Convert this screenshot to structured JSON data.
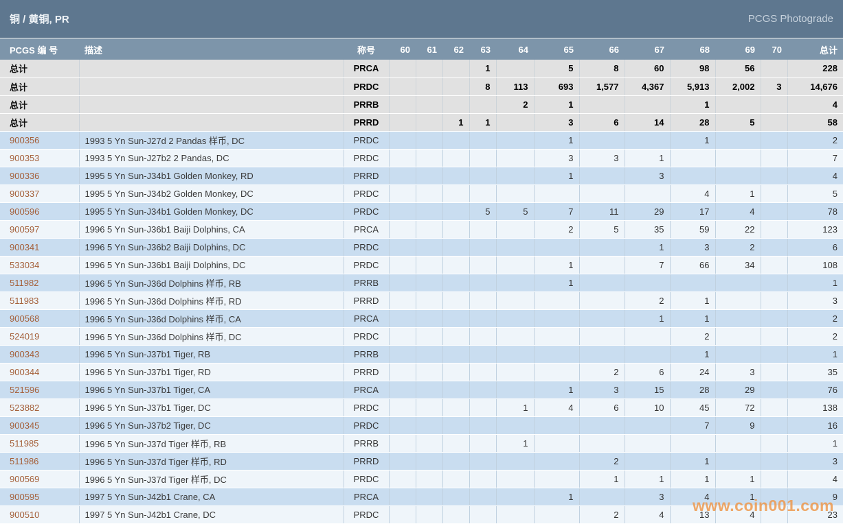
{
  "title_bar": {
    "title": "铜 / 黄铜, PR",
    "right_text": "PCGS Photograde"
  },
  "colors": {
    "titlebar_bg": "#5e778f",
    "header_bg": "#7d95aa",
    "total_row_bg": "#e1e1e1",
    "row_blue": "#c9ddf0",
    "row_light": "#eff5fa",
    "pcgs_number_text": "#a5613b",
    "watermark_orange": "#ee9a4f"
  },
  "table": {
    "headers": {
      "pcgs_number": "PCGS 编 号",
      "description": "描述",
      "designation": "称号",
      "grades": [
        "60",
        "61",
        "62",
        "63",
        "64",
        "65",
        "66",
        "67",
        "68",
        "69",
        "70"
      ],
      "total": "总计"
    },
    "total_row_label": "总计",
    "total_rows": [
      {
        "designation": "PRCA",
        "grades": [
          "",
          "",
          "",
          "1",
          "",
          "5",
          "8",
          "60",
          "98",
          "56",
          ""
        ],
        "total": "228"
      },
      {
        "designation": "PRDC",
        "grades": [
          "",
          "",
          "",
          "8",
          "113",
          "693",
          "1,577",
          "4,367",
          "5,913",
          "2,002",
          "3"
        ],
        "total": "14,676"
      },
      {
        "designation": "PRRB",
        "grades": [
          "",
          "",
          "",
          "",
          "2",
          "1",
          "",
          "",
          "1",
          "",
          ""
        ],
        "total": "4"
      },
      {
        "designation": "PRRD",
        "grades": [
          "",
          "",
          "1",
          "1",
          "",
          "3",
          "6",
          "14",
          "28",
          "5",
          ""
        ],
        "total": "58"
      }
    ],
    "rows": [
      {
        "pcgs_number": "900356",
        "description": "1993 5 Yn Sun-J27d 2 Pandas 样币, DC",
        "designation": "PRDC",
        "grades": [
          "",
          "",
          "",
          "",
          "",
          "1",
          "",
          "",
          "1",
          "",
          ""
        ],
        "total": "2"
      },
      {
        "pcgs_number": "900353",
        "description": "1993 5 Yn Sun-J27b2 2 Pandas, DC",
        "designation": "PRDC",
        "grades": [
          "",
          "",
          "",
          "",
          "",
          "3",
          "3",
          "1",
          "",
          "",
          ""
        ],
        "total": "7"
      },
      {
        "pcgs_number": "900336",
        "description": "1995 5 Yn Sun-J34b1 Golden Monkey, RD",
        "designation": "PRRD",
        "grades": [
          "",
          "",
          "",
          "",
          "",
          "1",
          "",
          "3",
          "",
          "",
          ""
        ],
        "total": "4"
      },
      {
        "pcgs_number": "900337",
        "description": "1995 5 Yn Sun-J34b2 Golden Monkey, DC",
        "designation": "PRDC",
        "grades": [
          "",
          "",
          "",
          "",
          "",
          "",
          "",
          "",
          "4",
          "1",
          ""
        ],
        "total": "5"
      },
      {
        "pcgs_number": "900596",
        "description": "1995 5 Yn Sun-J34b1 Golden Monkey, DC",
        "designation": "PRDC",
        "grades": [
          "",
          "",
          "",
          "5",
          "5",
          "7",
          "11",
          "29",
          "17",
          "4",
          ""
        ],
        "total": "78"
      },
      {
        "pcgs_number": "900597",
        "description": "1996 5 Yn Sun-J36b1 Baiji Dolphins, CA",
        "designation": "PRCA",
        "grades": [
          "",
          "",
          "",
          "",
          "",
          "2",
          "5",
          "35",
          "59",
          "22",
          ""
        ],
        "total": "123"
      },
      {
        "pcgs_number": "900341",
        "description": "1996 5 Yn Sun-J36b2 Baiji Dolphins, DC",
        "designation": "PRDC",
        "grades": [
          "",
          "",
          "",
          "",
          "",
          "",
          "",
          "1",
          "3",
          "2",
          ""
        ],
        "total": "6"
      },
      {
        "pcgs_number": "533034",
        "description": "1996 5 Yn Sun-J36b1 Baiji Dolphins, DC",
        "designation": "PRDC",
        "grades": [
          "",
          "",
          "",
          "",
          "",
          "1",
          "",
          "7",
          "66",
          "34",
          ""
        ],
        "total": "108"
      },
      {
        "pcgs_number": "511982",
        "description": "1996 5 Yn Sun-J36d Dolphins 样币, RB",
        "designation": "PRRB",
        "grades": [
          "",
          "",
          "",
          "",
          "",
          "1",
          "",
          "",
          "",
          "",
          ""
        ],
        "total": "1"
      },
      {
        "pcgs_number": "511983",
        "description": "1996 5 Yn Sun-J36d Dolphins 样币, RD",
        "designation": "PRRD",
        "grades": [
          "",
          "",
          "",
          "",
          "",
          "",
          "",
          "2",
          "1",
          "",
          ""
        ],
        "total": "3"
      },
      {
        "pcgs_number": "900568",
        "description": "1996 5 Yn Sun-J36d Dolphins 样币, CA",
        "designation": "PRCA",
        "grades": [
          "",
          "",
          "",
          "",
          "",
          "",
          "",
          "1",
          "1",
          "",
          ""
        ],
        "total": "2"
      },
      {
        "pcgs_number": "524019",
        "description": "1996 5 Yn Sun-J36d Dolphins 样币, DC",
        "designation": "PRDC",
        "grades": [
          "",
          "",
          "",
          "",
          "",
          "",
          "",
          "",
          "2",
          "",
          ""
        ],
        "total": "2"
      },
      {
        "pcgs_number": "900343",
        "description": "1996 5 Yn Sun-J37b1 Tiger, RB",
        "designation": "PRRB",
        "grades": [
          "",
          "",
          "",
          "",
          "",
          "",
          "",
          "",
          "1",
          "",
          ""
        ],
        "total": "1"
      },
      {
        "pcgs_number": "900344",
        "description": "1996 5 Yn Sun-J37b1 Tiger, RD",
        "designation": "PRRD",
        "grades": [
          "",
          "",
          "",
          "",
          "",
          "",
          "2",
          "6",
          "24",
          "3",
          ""
        ],
        "total": "35"
      },
      {
        "pcgs_number": "521596",
        "description": "1996 5 Yn Sun-J37b1 Tiger, CA",
        "designation": "PRCA",
        "grades": [
          "",
          "",
          "",
          "",
          "",
          "1",
          "3",
          "15",
          "28",
          "29",
          ""
        ],
        "total": "76"
      },
      {
        "pcgs_number": "523882",
        "description": "1996 5 Yn Sun-J37b1 Tiger, DC",
        "designation": "PRDC",
        "grades": [
          "",
          "",
          "",
          "",
          "1",
          "4",
          "6",
          "10",
          "45",
          "72",
          ""
        ],
        "total": "138"
      },
      {
        "pcgs_number": "900345",
        "description": "1996 5 Yn Sun-J37b2 Tiger, DC",
        "designation": "PRDC",
        "grades": [
          "",
          "",
          "",
          "",
          "",
          "",
          "",
          "",
          "7",
          "9",
          ""
        ],
        "total": "16"
      },
      {
        "pcgs_number": "511985",
        "description": "1996 5 Yn Sun-J37d Tiger 样币, RB",
        "designation": "PRRB",
        "grades": [
          "",
          "",
          "",
          "",
          "1",
          "",
          "",
          "",
          "",
          "",
          ""
        ],
        "total": "1"
      },
      {
        "pcgs_number": "511986",
        "description": "1996 5 Yn Sun-J37d Tiger 样币, RD",
        "designation": "PRRD",
        "grades": [
          "",
          "",
          "",
          "",
          "",
          "",
          "2",
          "",
          "1",
          "",
          ""
        ],
        "total": "3"
      },
      {
        "pcgs_number": "900569",
        "description": "1996 5 Yn Sun-J37d Tiger 样币, DC",
        "designation": "PRDC",
        "grades": [
          "",
          "",
          "",
          "",
          "",
          "",
          "1",
          "1",
          "1",
          "1",
          ""
        ],
        "total": "4"
      },
      {
        "pcgs_number": "900595",
        "description": "1997 5 Yn Sun-J42b1 Crane, CA",
        "designation": "PRCA",
        "grades": [
          "",
          "",
          "",
          "",
          "",
          "1",
          "",
          "3",
          "4",
          "1",
          ""
        ],
        "total": "9"
      },
      {
        "pcgs_number": "900510",
        "description": "1997 5 Yn Sun-J42b1 Crane, DC",
        "designation": "PRDC",
        "grades": [
          "",
          "",
          "",
          "",
          "",
          "",
          "2",
          "4",
          "13",
          "4",
          ""
        ],
        "total": "23"
      }
    ]
  },
  "watermark": "www.coin001.com"
}
